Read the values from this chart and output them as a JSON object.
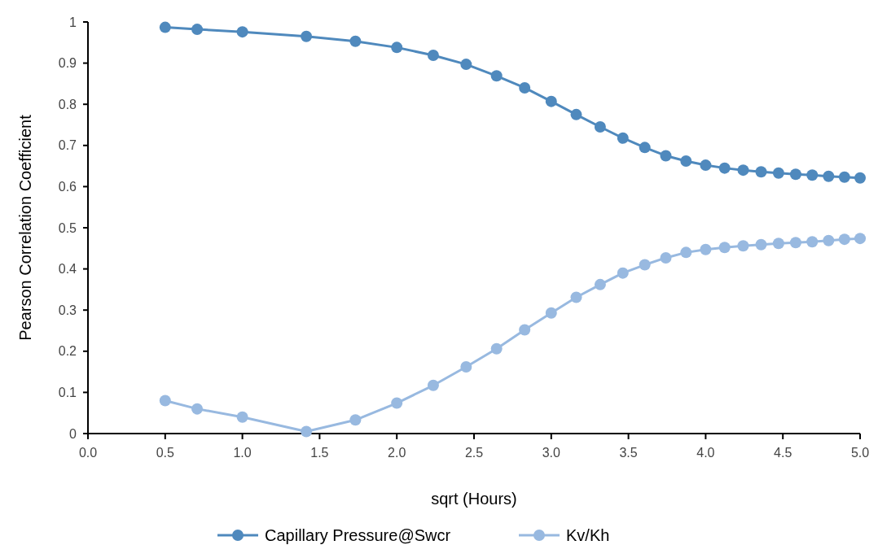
{
  "chart_data": {
    "type": "line",
    "xlabel": "sqrt (Hours)",
    "ylabel": "Pearson Correlation Coefficient",
    "x": [
      0.5,
      0.707,
      1,
      1.414,
      1.732,
      2,
      2.236,
      2.449,
      2.646,
      2.828,
      3,
      3.162,
      3.317,
      3.464,
      3.606,
      3.742,
      3.873,
      4,
      4.123,
      4.243,
      4.359,
      4.472,
      4.583,
      4.69,
      4.796,
      4.899,
      5
    ],
    "series": [
      {
        "name": "Capillary Pressure@Swcr",
        "color": "#4f89bd",
        "values": [
          0.987,
          0.982,
          0.976,
          0.965,
          0.953,
          0.938,
          0.919,
          0.897,
          0.869,
          0.84,
          0.807,
          0.775,
          0.745,
          0.718,
          0.695,
          0.675,
          0.662,
          0.652,
          0.645,
          0.64,
          0.636,
          0.633,
          0.63,
          0.628,
          0.625,
          0.623,
          0.621
        ]
      },
      {
        "name": "Kv/Kh",
        "color": "#98b9e0",
        "values": [
          0.08,
          0.06,
          0.04,
          0.005,
          0.033,
          0.074,
          0.117,
          0.162,
          0.206,
          0.252,
          0.293,
          0.331,
          0.362,
          0.39,
          0.41,
          0.427,
          0.44,
          0.447,
          0.452,
          0.456,
          0.459,
          0.462,
          0.464,
          0.466,
          0.469,
          0.472,
          0.474
        ]
      }
    ],
    "xlim": [
      0,
      5
    ],
    "xticks": [
      {
        "value": 0,
        "label": "0.0"
      },
      {
        "value": 0.5,
        "label": "0.5"
      },
      {
        "value": 1,
        "label": "1.0"
      },
      {
        "value": 1.5,
        "label": "1.5"
      },
      {
        "value": 2,
        "label": "2.0"
      },
      {
        "value": 2.5,
        "label": "2.5"
      },
      {
        "value": 3,
        "label": "3.0"
      },
      {
        "value": 3.5,
        "label": "3.5"
      },
      {
        "value": 4,
        "label": "4.0"
      },
      {
        "value": 4.5,
        "label": "4.5"
      },
      {
        "value": 5,
        "label": "5.0"
      }
    ],
    "ylim": [
      0,
      1
    ],
    "yticks": [
      0,
      0.1,
      0.2,
      0.3,
      0.4,
      0.5,
      0.6,
      0.7,
      0.8,
      0.9,
      1
    ],
    "legend": "bottom",
    "marker": "circle",
    "grid": false
  }
}
